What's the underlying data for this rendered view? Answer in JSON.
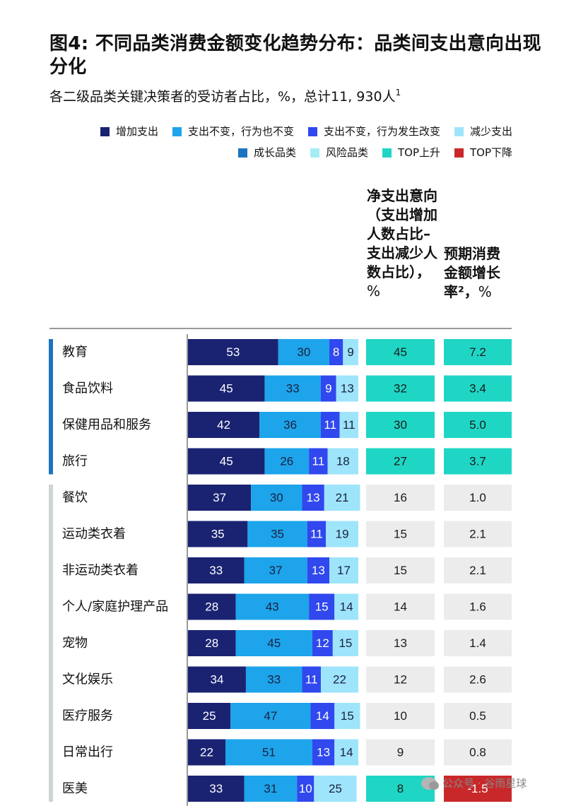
{
  "title": "图4: 不同品类消费金额变化趋势分布：品类间支出意向出现分化",
  "subtitle": "各二级品类关键决策者的受访者占比，%，总计11, 930人",
  "subtitle_sup": "1",
  "legend_row_1": [
    {
      "label": "增加支出",
      "color": "#1a2372"
    },
    {
      "label": "支出不变，行为也不变",
      "color": "#1da4ea"
    },
    {
      "label": "支出不变，行为发生改变",
      "color": "#3048ee"
    },
    {
      "label": "减少支出",
      "color": "#9ee5fb"
    }
  ],
  "legend_row_2": [
    {
      "label": "成长品类",
      "color": "#1b74c0"
    },
    {
      "label": "风险品类",
      "color": "#a6ecf5"
    },
    {
      "label": "TOP上升",
      "color": "#1fd6c5"
    },
    {
      "label": "TOP下降",
      "color": "#c9282a"
    }
  ],
  "col_head_net": "净支出意向（支出增加人数占比–支出减少人数占比），",
  "col_head_net_unit": "%",
  "col_head_growth": "预期消费金额增长率²，",
  "col_head_growth_unit": "%",
  "colors": {
    "increase": "#1a2372",
    "unchanged": "#1da4ea",
    "changed": "#3048ee",
    "decrease": "#9ee5fb",
    "growth_group": "#1b74c0",
    "risk_group": "#cfd3d6",
    "top_up": "#1fd6c5",
    "top_down": "#c9282a",
    "neutral_cell": "#ececec"
  },
  "chart_data": {
    "type": "bar",
    "stacked": true,
    "orientation": "horizontal",
    "categories": [
      "教育",
      "食品饮料",
      "保健用品和服务",
      "旅行",
      "餐饮",
      "运动类衣着",
      "非运动类衣着",
      "个人/家庭护理产品",
      "宠物",
      "文化娱乐",
      "医疗服务",
      "日常出行",
      "医美"
    ],
    "groups": [
      "growth",
      "growth",
      "growth",
      "growth",
      "risk",
      "risk",
      "risk",
      "risk",
      "risk",
      "risk",
      "risk",
      "risk",
      "risk"
    ],
    "series": [
      {
        "name": "增加支出",
        "values": [
          53,
          45,
          42,
          45,
          37,
          35,
          33,
          28,
          28,
          34,
          25,
          22,
          33
        ]
      },
      {
        "name": "支出不变，行为也不变",
        "values": [
          30,
          33,
          36,
          26,
          30,
          35,
          37,
          43,
          45,
          33,
          47,
          51,
          31
        ]
      },
      {
        "name": "支出不变，行为发生改变",
        "values": [
          8,
          9,
          11,
          11,
          13,
          11,
          13,
          15,
          12,
          11,
          14,
          13,
          10
        ]
      },
      {
        "name": "减少支出",
        "values": [
          9,
          13,
          11,
          18,
          21,
          19,
          17,
          14,
          15,
          22,
          15,
          14,
          25
        ]
      }
    ],
    "net_intent": [
      "45",
      "32",
      "30",
      "27",
      "16",
      "15",
      "15",
      "14",
      "13",
      "12",
      "10",
      "9",
      "8"
    ],
    "growth_rate": [
      "7.2",
      "3.4",
      "5.0",
      "3.7",
      "1.0",
      "2.1",
      "2.1",
      "1.6",
      "1.4",
      "2.6",
      "0.5",
      "0.8",
      "-1.5"
    ],
    "highlight": [
      "up",
      "up",
      "up",
      "up",
      "none",
      "none",
      "none",
      "none",
      "none",
      "none",
      "none",
      "none",
      "down"
    ],
    "xlim": [
      0,
      100
    ]
  },
  "watermark": "公众号 · 谷雨星球"
}
